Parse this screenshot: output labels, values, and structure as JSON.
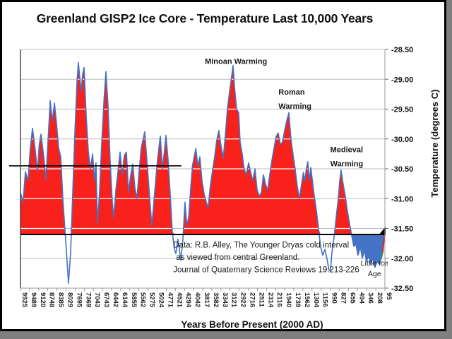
{
  "page": {
    "bg_color": "#7f7f7f",
    "slide_bg": "#ffffff",
    "slide_border": "#000000"
  },
  "title": "Greenland GISP2 Ice Core - Temperature Last 10,000 Years",
  "chart_data": {
    "type": "area",
    "title": "Greenland GISP2 Ice Core - Temperature Last 10,000 Years",
    "x_axis": {
      "label": "Years Before Present (2000 AD)",
      "tick_labels": [
        "9925",
        "9489",
        "9120",
        "8748",
        "8385",
        "8029",
        "7695",
        "7369",
        "7043",
        "6743",
        "6442",
        "6144",
        "5855",
        "5562",
        "5275",
        "5024",
        "4771",
        "4521",
        "4294",
        "4042",
        "3817",
        "3582",
        "3343",
        "3121",
        "2922",
        "2716",
        "2511",
        "2314",
        "2116",
        "1940",
        "1739",
        "1562",
        "1304",
        "1156",
        "990",
        "827",
        "655",
        "494",
        "346",
        "208",
        "95"
      ]
    },
    "y_axis": {
      "label": "Temperature (degrees C)",
      "min": -32.5,
      "max": -28.5,
      "tick_step": 0.5,
      "tick_labels": [
        "-28.50",
        "-29.00",
        "-29.50",
        "-30.00",
        "-30.50",
        "-31.00",
        "-31.50",
        "-32.00",
        "-32.50"
      ]
    },
    "grid": true,
    "legend": false,
    "baseline": {
      "temp": -31.6,
      "color": "#000000"
    },
    "overlay_line": {
      "temp": -30.45,
      "to_year": 4370,
      "color": "#000000"
    },
    "colors": {
      "line": "#4472c4",
      "area_above_baseline": "#f8211c",
      "area_below_baseline_recent": "#4472c4",
      "recent_green_segment": "#3a9e3a",
      "recent_red_segment": "#e01f1f",
      "gridline": "#bdbdbd",
      "gridline_over_area": "#ffffff",
      "axis_dark": "#404040",
      "axis_light": "#9a9a9a"
    },
    "blue_area_year_range": [
      640,
      95
    ],
    "recent_rise": {
      "green_segment_years": [
        140,
        122
      ],
      "red_segment_years": [
        122,
        95
      ]
    },
    "annotations": [
      {
        "text_lines": [
          "Minoan Warming"
        ],
        "year": 2990,
        "temp": -28.74,
        "align": "middle",
        "font_size": 11,
        "bold": true,
        "line_height": 20
      },
      {
        "text_lines": [
          "Roman",
          "Warming"
        ],
        "year": 2060,
        "temp": -29.26,
        "align": "start",
        "font_size": 11,
        "bold": true,
        "line_height": 20
      },
      {
        "text_lines": [
          "Medieval",
          "Warming"
        ],
        "year": 990,
        "temp": -30.22,
        "align": "start",
        "font_size": 11,
        "bold": true,
        "line_height": 20
      },
      {
        "text_lines": [
          "Little Ice",
          "Age"
        ],
        "year": 228,
        "temp": -32.12,
        "align": "middle",
        "font_size": 10.5,
        "bold": false,
        "line_height": 15
      }
    ],
    "citation": {
      "lines": [
        "Data: R.B. Alley,  The Younger Dryas cold interval",
        "as viewed from central Greenland.",
        "Journal of Quaternary  Science Reviews 19:213-226"
      ],
      "year": 4580,
      "temp": -31.82,
      "font_size": 11.5,
      "line_height": 17.5
    },
    "series": [
      {
        "name": "GISP2 surface temperature",
        "points": [
          [
            9925,
            -30.9
          ],
          [
            9800,
            -31.05
          ],
          [
            9690,
            -30.55
          ],
          [
            9560,
            -30.7
          ],
          [
            9470,
            -30.2
          ],
          [
            9371,
            -29.82
          ],
          [
            9257,
            -30.2
          ],
          [
            9172,
            -30.55
          ],
          [
            9100,
            -30.1
          ],
          [
            9027,
            -29.92
          ],
          [
            8912,
            -30.3
          ],
          [
            8826,
            -30.68
          ],
          [
            8741,
            -30.05
          ],
          [
            8652,
            -29.36
          ],
          [
            8570,
            -29.7
          ],
          [
            8484,
            -29.4
          ],
          [
            8400,
            -29.75
          ],
          [
            8318,
            -30.15
          ],
          [
            8235,
            -30.3
          ],
          [
            8154,
            -31.0
          ],
          [
            8043,
            -31.7
          ],
          [
            7939,
            -32.42
          ],
          [
            7862,
            -31.9
          ],
          [
            7782,
            -30.9
          ],
          [
            7705,
            -29.9
          ],
          [
            7630,
            -29.05
          ],
          [
            7578,
            -28.72
          ],
          [
            7529,
            -28.98
          ],
          [
            7477,
            -29.2
          ],
          [
            7428,
            -28.92
          ],
          [
            7376,
            -28.8
          ],
          [
            7300,
            -29.6
          ],
          [
            7225,
            -30.2
          ],
          [
            7150,
            -30.5
          ],
          [
            7072,
            -30.25
          ],
          [
            7001,
            -30.7
          ],
          [
            6957,
            -30.4
          ],
          [
            6909,
            -31.42
          ],
          [
            6840,
            -30.9
          ],
          [
            6770,
            -30.1
          ],
          [
            6698,
            -29.4
          ],
          [
            6628,
            -28.87
          ],
          [
            6559,
            -29.45
          ],
          [
            6490,
            -30.35
          ],
          [
            6418,
            -31.05
          ],
          [
            6373,
            -31.32
          ],
          [
            6302,
            -30.85
          ],
          [
            6233,
            -30.55
          ],
          [
            6164,
            -30.22
          ],
          [
            6097,
            -30.6
          ],
          [
            6029,
            -30.28
          ],
          [
            5962,
            -30.22
          ],
          [
            5896,
            -30.9
          ],
          [
            5829,
            -30.62
          ],
          [
            5759,
            -30.42
          ],
          [
            5692,
            -30.82
          ],
          [
            5626,
            -31.0
          ],
          [
            5557,
            -30.55
          ],
          [
            5488,
            -30.15
          ],
          [
            5379,
            -29.88
          ],
          [
            5290,
            -30.5
          ],
          [
            5228,
            -31.0
          ],
          [
            5170,
            -31.45
          ],
          [
            5092,
            -30.9
          ],
          [
            5014,
            -30.35
          ],
          [
            4935,
            -29.95
          ],
          [
            4877,
            -30.5
          ],
          [
            4819,
            -30.18
          ],
          [
            4779,
            -29.94
          ],
          [
            4721,
            -30.35
          ],
          [
            4664,
            -30.9
          ],
          [
            4606,
            -31.55
          ],
          [
            4546,
            -31.85
          ],
          [
            4509,
            -31.92
          ],
          [
            4457,
            -31.68
          ],
          [
            4384,
            -32.03
          ],
          [
            4332,
            -31.68
          ],
          [
            4281,
            -31.06
          ],
          [
            4229,
            -31.45
          ],
          [
            4175,
            -31.3
          ],
          [
            4123,
            -30.82
          ],
          [
            4072,
            -30.44
          ],
          [
            3987,
            -30.16
          ],
          [
            3939,
            -30.45
          ],
          [
            3887,
            -30.3
          ],
          [
            3835,
            -30.7
          ],
          [
            3781,
            -30.92
          ],
          [
            3729,
            -31.05
          ],
          [
            3677,
            -31.15
          ],
          [
            3625,
            -30.82
          ],
          [
            3562,
            -30.52
          ],
          [
            3507,
            -30.3
          ],
          [
            3452,
            -30.02
          ],
          [
            3397,
            -29.86
          ],
          [
            3339,
            -30.12
          ],
          [
            3287,
            -30.32
          ],
          [
            3236,
            -29.95
          ],
          [
            3185,
            -29.5
          ],
          [
            3131,
            -29.2
          ],
          [
            3085,
            -28.95
          ],
          [
            3055,
            -28.77
          ],
          [
            3024,
            -29.12
          ],
          [
            2978,
            -29.5
          ],
          [
            2932,
            -29.56
          ],
          [
            2900,
            -30.05
          ],
          [
            2854,
            -30.25
          ],
          [
            2808,
            -30.5
          ],
          [
            2762,
            -30.6
          ],
          [
            2708,
            -30.4
          ],
          [
            2660,
            -30.56
          ],
          [
            2614,
            -30.7
          ],
          [
            2564,
            -30.5
          ],
          [
            2517,
            -30.85
          ],
          [
            2471,
            -30.96
          ],
          [
            2426,
            -30.9
          ],
          [
            2379,
            -30.6
          ],
          [
            2334,
            -30.76
          ],
          [
            2288,
            -30.86
          ],
          [
            2243,
            -30.6
          ],
          [
            2196,
            -30.36
          ],
          [
            2152,
            -30.16
          ],
          [
            2105,
            -29.96
          ],
          [
            2065,
            -29.9
          ],
          [
            2023,
            -30.1
          ],
          [
            1982,
            -30.05
          ],
          [
            1942,
            -29.86
          ],
          [
            1896,
            -29.7
          ],
          [
            1848,
            -29.56
          ],
          [
            1801,
            -30.0
          ],
          [
            1756,
            -30.26
          ],
          [
            1713,
            -30.5
          ],
          [
            1670,
            -30.8
          ],
          [
            1629,
            -31.0
          ],
          [
            1588,
            -30.76
          ],
          [
            1548,
            -30.56
          ],
          [
            1507,
            -30.7
          ],
          [
            1465,
            -30.5
          ],
          [
            1423,
            -30.38
          ],
          [
            1380,
            -30.7
          ],
          [
            1338,
            -30.48
          ],
          [
            1268,
            -30.95
          ],
          [
            1233,
            -31.2
          ],
          [
            1199,
            -31.5
          ],
          [
            1165,
            -31.8
          ],
          [
            1128,
            -31.95
          ],
          [
            1088,
            -31.85
          ],
          [
            1050,
            -32.0
          ],
          [
            1012,
            -32.2
          ],
          [
            985,
            -32.2
          ],
          [
            960,
            -31.9
          ],
          [
            922,
            -31.65
          ],
          [
            883,
            -31.3
          ],
          [
            846,
            -31.0
          ],
          [
            822,
            -30.72
          ],
          [
            795,
            -30.52
          ],
          [
            755,
            -30.76
          ],
          [
            716,
            -30.95
          ],
          [
            676,
            -31.2
          ],
          [
            635,
            -31.42
          ],
          [
            598,
            -31.62
          ],
          [
            561,
            -31.8
          ],
          [
            524,
            -31.76
          ],
          [
            487,
            -31.95
          ],
          [
            449,
            -31.8
          ],
          [
            418,
            -32.0
          ],
          [
            384,
            -31.87
          ],
          [
            349,
            -32.05
          ],
          [
            317,
            -31.96
          ],
          [
            285,
            -32.1
          ],
          [
            254,
            -32.0
          ],
          [
            221,
            -32.15
          ],
          [
            189,
            -32.05
          ],
          [
            163,
            -32.1
          ],
          [
            140,
            -32.0
          ],
          [
            122,
            -31.9
          ],
          [
            95,
            -31.55
          ]
        ]
      }
    ]
  }
}
